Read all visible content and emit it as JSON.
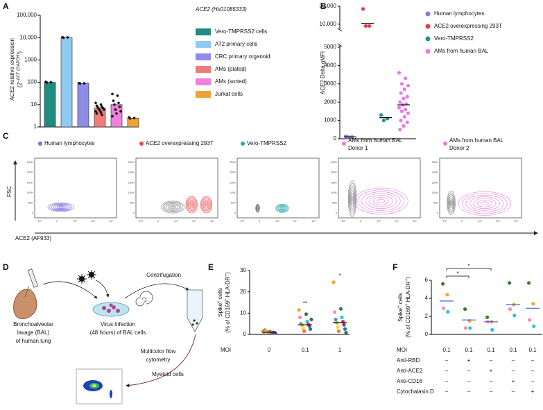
{
  "chart_data": [
    {
      "panel": "A",
      "type": "bar",
      "log_scale": true,
      "legend_title": "ACE2 (Hs01085333)",
      "y_label": [
        [
          {
            "t": "ACE2 relative expression"
          }
        ],
        [
          {
            "t": "(2"
          },
          {
            "t": "−ΔCT (GAPDH)",
            "sup": true
          },
          {
            "t": ")"
          }
        ]
      ],
      "ylim": [
        1,
        100000
      ],
      "yticks": [
        1,
        10,
        100,
        1000,
        {
          "value": 10000,
          "label": "10,000"
        },
        {
          "value": 100000,
          "label": "100,000"
        }
      ],
      "series": [
        {
          "name": "Vero-TMPRSS2 cells",
          "color": "#1f8c82",
          "values": [
            100
          ],
          "points": [
            105,
            100,
            98
          ]
        },
        {
          "name": "AT2 primary cells",
          "color": "#8ecbf0",
          "values": [
            10000
          ],
          "points": [
            10500,
            10200,
            9800
          ]
        },
        {
          "name": "CRC primary organoid",
          "color": "#8d8de8",
          "values": [
            90
          ],
          "points": [
            92,
            90,
            88
          ]
        },
        {
          "name": "AMs (plated)",
          "color": "#f07b7b",
          "values": [
            7
          ],
          "points": [
            12,
            10,
            9,
            8,
            7.5,
            7,
            6.5,
            6,
            5.5,
            5,
            4.5,
            4,
            3.5
          ]
        },
        {
          "name": "AMs (sorted)",
          "color": "#f27fdf",
          "values": [
            10
          ],
          "points": [
            30,
            25,
            15,
            12,
            10,
            8,
            6,
            5,
            4,
            3
          ]
        },
        {
          "name": "Jurkat cells",
          "color": "#f0a23a",
          "values": [
            2.5
          ],
          "points": [
            2.7,
            2.5,
            2.4
          ]
        }
      ]
    },
    {
      "panel": "B",
      "type": "dot",
      "y_label": [
        [
          {
            "t": "ACE2 Delta gMFI"
          }
        ]
      ],
      "ylim": [
        0,
        20000
      ],
      "axis_break": [
        5000,
        8000
      ],
      "yticks": [
        0,
        1000,
        2000,
        3000,
        4000,
        5000,
        {
          "value": 10000,
          "label": "10,000"
        },
        {
          "value": 20000,
          "label": "20,000"
        }
      ],
      "median_color": "#000000",
      "series": [
        {
          "name": "Human lymphocytes",
          "color": "#7f7fe6",
          "values": [
            130,
            100,
            90
          ],
          "median": 100
        },
        {
          "name": "ACE2 overexpressing 293T",
          "color": "#f03a3a",
          "values": [
            18500,
            9000,
            9000
          ],
          "median": 10500
        },
        {
          "name": "Vero-TMPRSS2",
          "color": "#21958a",
          "values": [
            1300,
            1100,
            1000
          ],
          "median": 1150
        },
        {
          "name": "AMs from human  BAL",
          "color": "#e77ae8",
          "values": [
            3600,
            3300,
            3000,
            2900,
            2700,
            2500,
            2300,
            2200,
            2000,
            1900,
            1850,
            1700,
            1600,
            1500,
            1400,
            1200,
            1000,
            900,
            700,
            500
          ],
          "median": 1850
        }
      ]
    },
    {
      "panel": "E",
      "type": "dot",
      "y_label": [
        [
          {
            "t": "Spike"
          },
          {
            "t": "+",
            "sup": true
          },
          {
            "t": " cells"
          }
        ],
        [
          {
            "t": "(% of CD169"
          },
          {
            "t": "+",
            "sup": true
          },
          {
            "t": " HLA-DR"
          },
          {
            "t": "+",
            "sup": true
          },
          {
            "t": ")"
          }
        ]
      ],
      "x_label": "MOI",
      "categories": [
        "0",
        "0.1",
        "1"
      ],
      "ylim": [
        0,
        30
      ],
      "yticks": [
        0,
        10,
        20,
        30
      ],
      "median_color": "#000000",
      "point_colors": [
        "#f5a623",
        "#2e7d32",
        "#f48fb1",
        "#26c6da",
        "#6f7bd6",
        "#e53935",
        "#8bc34a",
        "#9c27b0",
        "#fdd835",
        "#00897b",
        "#ff7043",
        "#455a64"
      ],
      "values": [
        1.0,
        4.5,
        5.5
      ],
      "points": [
        [
          1.5,
          1.2,
          1.0,
          0.8,
          2.0,
          0.5,
          1.8,
          0.9,
          1.3,
          0.7,
          1.1,
          0.6
        ],
        [
          11.5,
          9.5,
          8,
          6,
          5,
          4.8,
          4.5,
          4,
          3,
          2.5,
          1.5,
          7
        ],
        [
          24.5,
          12,
          10.5,
          8,
          7,
          6,
          5.5,
          4.5,
          3.5,
          2.5,
          1.5,
          0.8
        ]
      ],
      "annotations": [
        {
          "text": "**",
          "x": "0.1"
        },
        {
          "text": "*",
          "x": "1"
        }
      ]
    },
    {
      "panel": "F",
      "type": "dot",
      "y_label": [
        [
          {
            "t": "Spike"
          },
          {
            "t": "+",
            "sup": true
          },
          {
            "t": " cells"
          }
        ],
        [
          {
            "t": "(% of CD169"
          },
          {
            "t": "+",
            "sup": true
          },
          {
            "t": " HLA-DR"
          },
          {
            "t": "+",
            "sup": true
          },
          {
            "t": ")"
          }
        ]
      ],
      "x_label": "MOI",
      "categories": [
        "0.1",
        "0.1",
        "0.1",
        "0.1",
        "0.1"
      ],
      "ylim": [
        0,
        6
      ],
      "yticks": [
        0,
        2,
        4,
        6
      ],
      "median_color": "#3d5afe",
      "point_colors": [
        "#3a7d2c",
        "#f5a623",
        "#f48fb1",
        "#26c6da"
      ],
      "values": [
        3.7,
        1.6,
        1.4,
        3.3,
        2.9
      ],
      "points": [
        [
          5.6,
          4.4,
          2.9,
          2.5
        ],
        [
          2.8,
          1.5,
          0.7,
          0.7
        ],
        [
          1.9,
          1.4,
          1.4,
          0.5
        ],
        [
          5.7,
          3.3,
          2.8,
          2.1
        ],
        [
          5.7,
          3.4,
          1.6,
          0.9
        ]
      ],
      "significance": [
        {
          "from": 0,
          "to": 1,
          "text": "*"
        },
        {
          "from": 0,
          "to": 2,
          "text": "*"
        }
      ],
      "rows": [
        {
          "name": "Anti-RBD",
          "values": [
            "–",
            "+",
            "–",
            "–",
            "–"
          ]
        },
        {
          "name": "Anti-ACE2",
          "values": [
            "–",
            "–",
            "+",
            "–",
            "–"
          ]
        },
        {
          "name": "Anti-CD16",
          "values": [
            "–",
            "–",
            "–",
            "+",
            "–"
          ]
        },
        {
          "name": "Cytochalasin D",
          "values": [
            "–",
            "–",
            "–",
            "–",
            "+"
          ]
        }
      ]
    }
  ],
  "flow_panel": {
    "panel": "C",
    "y_label": "FSC",
    "x_label": "ACE2 (AF933)",
    "yticks": [
      "250K",
      "200K",
      "150K",
      "100K",
      "50K",
      "0"
    ],
    "xticks": [
      "−10³",
      "0",
      "10³",
      "10⁴",
      "10⁵"
    ],
    "plots": [
      {
        "title": [
          "Human lymphocytes"
        ],
        "color": "#7b6fe0"
      },
      {
        "title": [
          "ACE2 overexpressing 293T"
        ],
        "color": "#f04a4a"
      },
      {
        "title": [
          "Vero-TMPRSS2"
        ],
        "color": "#2aa9a9"
      },
      {
        "title": [
          "AMs from human  BAL",
          "Donor 1"
        ],
        "color": "#e87ee0"
      },
      {
        "title": [
          "AMs from human  BAL",
          "Donor 2"
        ],
        "color": "#e87ee0"
      }
    ]
  },
  "schematic": {
    "panel": "D",
    "bal": [
      "Bronchoalveolar",
      "lavage (BAL)",
      "of human lung"
    ],
    "infection": [
      "Virus infection",
      "(48 hours) of BAL cells"
    ],
    "centrifugation": [
      "Centrifugation"
    ],
    "myeloid": [
      "Myeloid cells"
    ],
    "flow": [
      "Multicolor flow",
      "cytometry"
    ]
  }
}
